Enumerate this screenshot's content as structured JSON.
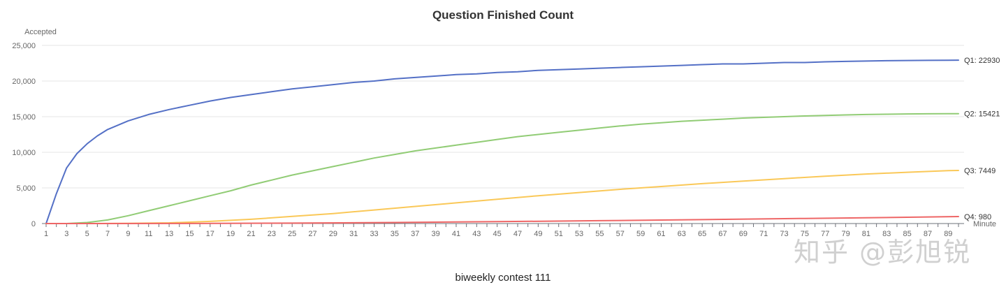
{
  "chart_data": {
    "type": "line",
    "title": "Question Finished Count",
    "xlabel": "Minute",
    "ylabel": "Accepted",
    "xlim": [
      1,
      90
    ],
    "ylim": [
      0,
      25000
    ],
    "y_ticks": [
      0,
      5000,
      10000,
      15000,
      20000,
      25000
    ],
    "y_tick_labels": [
      "0",
      "5,000",
      "10,000",
      "15,000",
      "20,000",
      "25,000"
    ],
    "x_tick_labels": [
      "1",
      "3",
      "5",
      "7",
      "9",
      "11",
      "13",
      "15",
      "17",
      "19",
      "21",
      "23",
      "25",
      "27",
      "29",
      "31",
      "33",
      "35",
      "37",
      "39",
      "41",
      "43",
      "45",
      "47",
      "49",
      "51",
      "53",
      "55",
      "57",
      "59",
      "61",
      "63",
      "65",
      "67",
      "69",
      "71",
      "73",
      "75",
      "77",
      "79",
      "81",
      "83",
      "85",
      "87",
      "89"
    ],
    "grid": true,
    "legend": "none",
    "series": [
      {
        "name": "Q1",
        "color": "#5470c6",
        "end_label": "Q1: 22930",
        "points": [
          [
            1,
            0
          ],
          [
            2,
            4200
          ],
          [
            3,
            7800
          ],
          [
            4,
            9800
          ],
          [
            5,
            11200
          ],
          [
            6,
            12300
          ],
          [
            7,
            13200
          ],
          [
            9,
            14400
          ],
          [
            11,
            15300
          ],
          [
            13,
            16000
          ],
          [
            15,
            16600
          ],
          [
            17,
            17200
          ],
          [
            19,
            17700
          ],
          [
            21,
            18100
          ],
          [
            23,
            18500
          ],
          [
            25,
            18900
          ],
          [
            27,
            19200
          ],
          [
            29,
            19500
          ],
          [
            31,
            19800
          ],
          [
            33,
            20000
          ],
          [
            35,
            20300
          ],
          [
            37,
            20500
          ],
          [
            39,
            20700
          ],
          [
            41,
            20900
          ],
          [
            43,
            21000
          ],
          [
            45,
            21200
          ],
          [
            47,
            21300
          ],
          [
            49,
            21500
          ],
          [
            51,
            21600
          ],
          [
            53,
            21700
          ],
          [
            55,
            21800
          ],
          [
            57,
            21900
          ],
          [
            59,
            22000
          ],
          [
            61,
            22100
          ],
          [
            63,
            22200
          ],
          [
            65,
            22300
          ],
          [
            67,
            22400
          ],
          [
            69,
            22400
          ],
          [
            71,
            22500
          ],
          [
            73,
            22600
          ],
          [
            75,
            22600
          ],
          [
            77,
            22700
          ],
          [
            79,
            22750
          ],
          [
            81,
            22800
          ],
          [
            83,
            22850
          ],
          [
            85,
            22880
          ],
          [
            87,
            22900
          ],
          [
            89,
            22920
          ],
          [
            90,
            22930
          ]
        ]
      },
      {
        "name": "Q2",
        "color": "#91cc75",
        "end_label": "Q2: 15421",
        "points": [
          [
            1,
            0
          ],
          [
            3,
            0
          ],
          [
            5,
            150
          ],
          [
            7,
            500
          ],
          [
            9,
            1100
          ],
          [
            11,
            1800
          ],
          [
            13,
            2500
          ],
          [
            15,
            3200
          ],
          [
            17,
            3900
          ],
          [
            19,
            4600
          ],
          [
            21,
            5400
          ],
          [
            23,
            6100
          ],
          [
            25,
            6800
          ],
          [
            27,
            7400
          ],
          [
            29,
            8000
          ],
          [
            31,
            8600
          ],
          [
            33,
            9200
          ],
          [
            35,
            9700
          ],
          [
            37,
            10200
          ],
          [
            39,
            10600
          ],
          [
            41,
            11000
          ],
          [
            43,
            11400
          ],
          [
            45,
            11800
          ],
          [
            47,
            12200
          ],
          [
            49,
            12500
          ],
          [
            51,
            12800
          ],
          [
            53,
            13100
          ],
          [
            55,
            13400
          ],
          [
            57,
            13700
          ],
          [
            59,
            13950
          ],
          [
            61,
            14150
          ],
          [
            63,
            14350
          ],
          [
            65,
            14500
          ],
          [
            67,
            14650
          ],
          [
            69,
            14800
          ],
          [
            71,
            14900
          ],
          [
            73,
            15000
          ],
          [
            75,
            15100
          ],
          [
            77,
            15180
          ],
          [
            79,
            15250
          ],
          [
            81,
            15300
          ],
          [
            83,
            15340
          ],
          [
            85,
            15380
          ],
          [
            87,
            15400
          ],
          [
            89,
            15415
          ],
          [
            90,
            15421
          ]
        ]
      },
      {
        "name": "Q3",
        "color": "#fac858",
        "end_label": "Q3: 7449",
        "points": [
          [
            1,
            0
          ],
          [
            5,
            0
          ],
          [
            9,
            30
          ],
          [
            13,
            100
          ],
          [
            17,
            300
          ],
          [
            21,
            600
          ],
          [
            25,
            1000
          ],
          [
            29,
            1400
          ],
          [
            33,
            1900
          ],
          [
            37,
            2400
          ],
          [
            41,
            2900
          ],
          [
            45,
            3400
          ],
          [
            49,
            3900
          ],
          [
            53,
            4350
          ],
          [
            57,
            4800
          ],
          [
            61,
            5200
          ],
          [
            65,
            5600
          ],
          [
            69,
            5950
          ],
          [
            73,
            6300
          ],
          [
            77,
            6650
          ],
          [
            81,
            6950
          ],
          [
            85,
            7200
          ],
          [
            89,
            7420
          ],
          [
            90,
            7449
          ]
        ]
      },
      {
        "name": "Q4",
        "color": "#ee6666",
        "end_label": "Q4: 980",
        "points": [
          [
            1,
            0
          ],
          [
            5,
            0
          ],
          [
            15,
            10
          ],
          [
            25,
            60
          ],
          [
            35,
            150
          ],
          [
            45,
            260
          ],
          [
            55,
            400
          ],
          [
            65,
            550
          ],
          [
            75,
            720
          ],
          [
            85,
            880
          ],
          [
            90,
            980
          ]
        ]
      }
    ]
  },
  "caption": "biweekly contest 111",
  "watermark": "知乎 @彭旭锐"
}
